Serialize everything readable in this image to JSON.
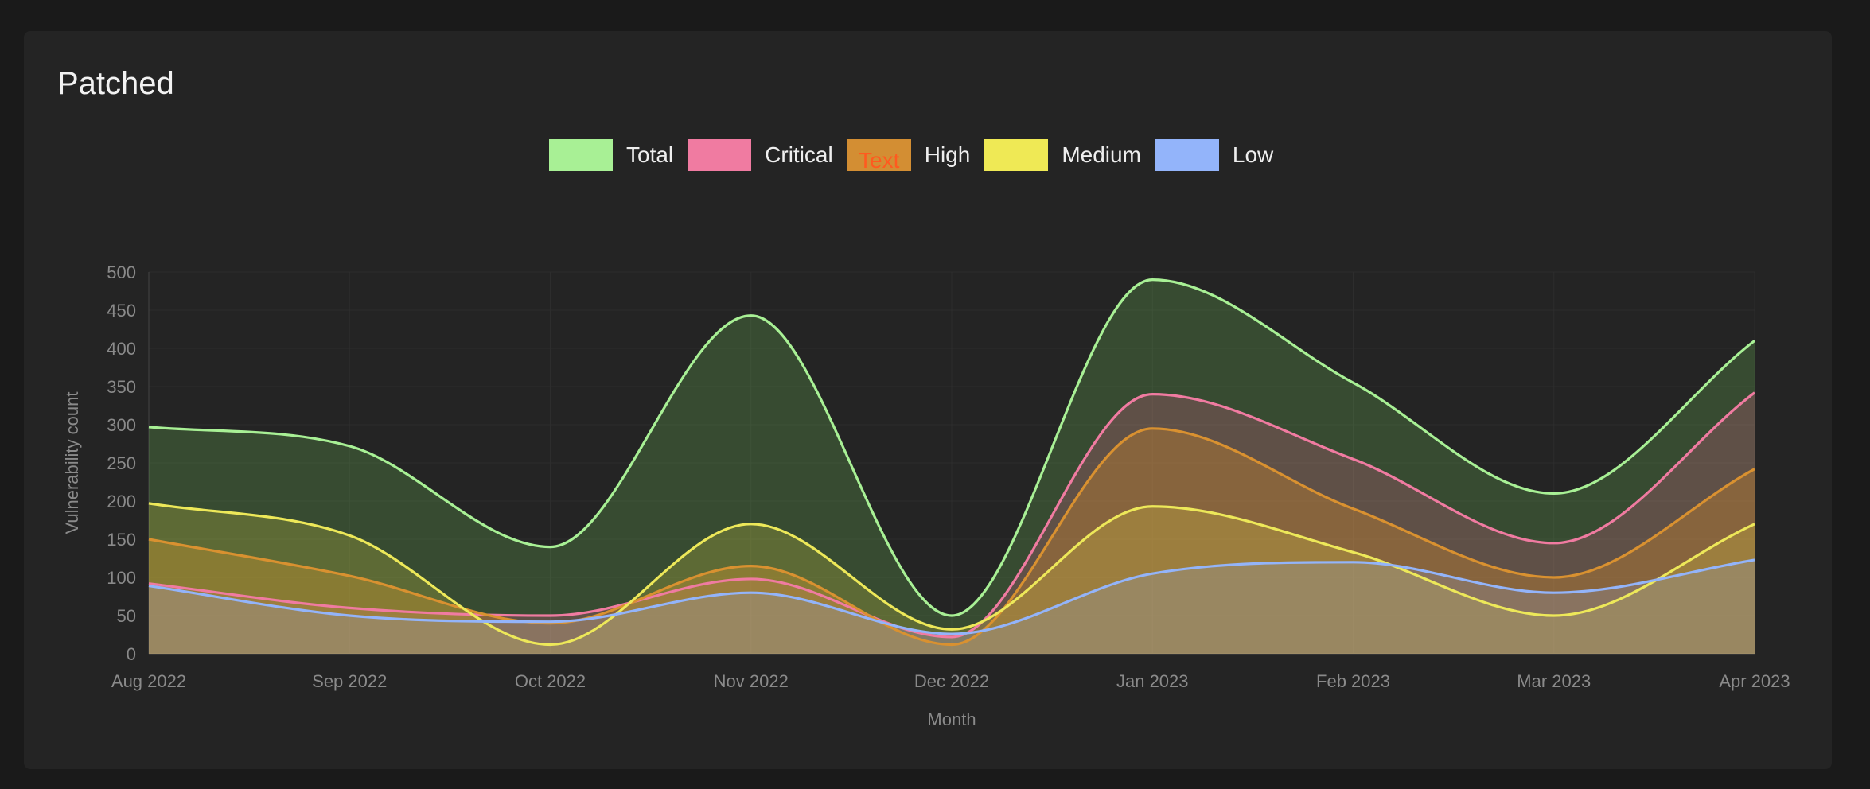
{
  "card": {
    "title": "Patched"
  },
  "chart_data": {
    "type": "area",
    "title": "Patched",
    "xlabel": "Month",
    "ylabel": "Vulnerability count",
    "ylim": [
      0,
      500
    ],
    "yticks": [
      0,
      50,
      100,
      150,
      200,
      250,
      300,
      350,
      400,
      450,
      500
    ],
    "categories": [
      "Aug 2022",
      "Sep 2022",
      "Oct 2022",
      "Nov 2022",
      "Dec 2022",
      "Jan 2023",
      "Feb 2023",
      "Mar 2023",
      "Apr 2023"
    ],
    "grid": true,
    "legend_position": "top-center",
    "series": [
      {
        "name": "Total",
        "color": "#a8f095",
        "fill": "rgba(125,215,95,0.22)",
        "values": [
          297,
          272,
          140,
          443,
          50,
          490,
          355,
          210,
          410
        ]
      },
      {
        "name": "Critical",
        "color": "#f07ba1",
        "fill": "rgba(240,100,150,0.22)",
        "values": [
          92,
          60,
          50,
          98,
          22,
          340,
          255,
          145,
          342
        ]
      },
      {
        "name": "High",
        "color": "#d99130",
        "fill": "rgba(215,140,45,0.34)",
        "values": [
          150,
          102,
          40,
          115,
          12,
          295,
          190,
          100,
          242
        ]
      },
      {
        "name": "Medium",
        "color": "#ede859",
        "fill": "rgba(230,220,70,0.22)",
        "values": [
          197,
          155,
          12,
          170,
          32,
          193,
          133,
          50,
          170
        ]
      },
      {
        "name": "Low",
        "color": "#93b4fa",
        "fill": "rgba(145,175,240,0.20)",
        "values": [
          89,
          50,
          42,
          80,
          26,
          105,
          120,
          80,
          123
        ]
      }
    ]
  },
  "legend": {
    "items": [
      {
        "label": "Total",
        "color": "#a8f095"
      },
      {
        "label": "Critical",
        "color": "#f07ba1"
      },
      {
        "label": "High",
        "color": "#d38e33",
        "note": "Text"
      },
      {
        "label": "Medium",
        "color": "#efe955"
      },
      {
        "label": "Low",
        "color": "#93b4fa"
      }
    ]
  }
}
